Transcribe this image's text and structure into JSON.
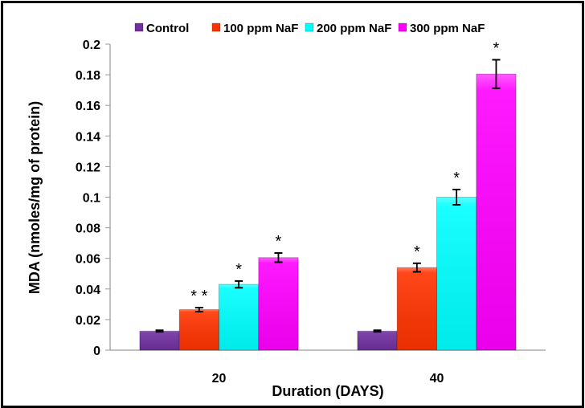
{
  "chart_data": {
    "type": "bar",
    "title": "",
    "xlabel": "Duration (DAYS)",
    "ylabel": "MDA (nmoles/mg of protein)",
    "categories": [
      "20",
      "40"
    ],
    "ylim": [
      0,
      0.2
    ],
    "yticks": [
      "0",
      "0.02",
      "0.04",
      "0.06",
      "0.08",
      "0.1",
      "0.12",
      "0.14",
      "0.16",
      "0.18",
      "0.2"
    ],
    "ytick_values": [
      0,
      0.02,
      0.04,
      0.06,
      0.08,
      0.1,
      0.12,
      0.14,
      0.16,
      0.18,
      0.2
    ],
    "grid": false,
    "legend_position": "top",
    "series": [
      {
        "name": "Control",
        "color": "#7030A0",
        "values": [
          0.0125,
          0.0125
        ],
        "errors": [
          0.0005,
          0.0005
        ],
        "significance": [
          "",
          ""
        ]
      },
      {
        "name": "100 ppm NaF",
        "color": "#FF3300",
        "values": [
          0.0265,
          0.054
        ],
        "errors": [
          0.0013,
          0.0028
        ],
        "significance": [
          "**",
          "*"
        ]
      },
      {
        "name": "200 ppm NaF",
        "color": "#00FFFF",
        "values": [
          0.043,
          0.1
        ],
        "errors": [
          0.0022,
          0.005
        ],
        "significance": [
          "*",
          "*"
        ]
      },
      {
        "name": "300 ppm NaF",
        "color": "#FF00FF",
        "values": [
          0.0605,
          0.1805
        ],
        "errors": [
          0.003,
          0.0093
        ],
        "significance": [
          "*",
          "*"
        ]
      }
    ]
  }
}
